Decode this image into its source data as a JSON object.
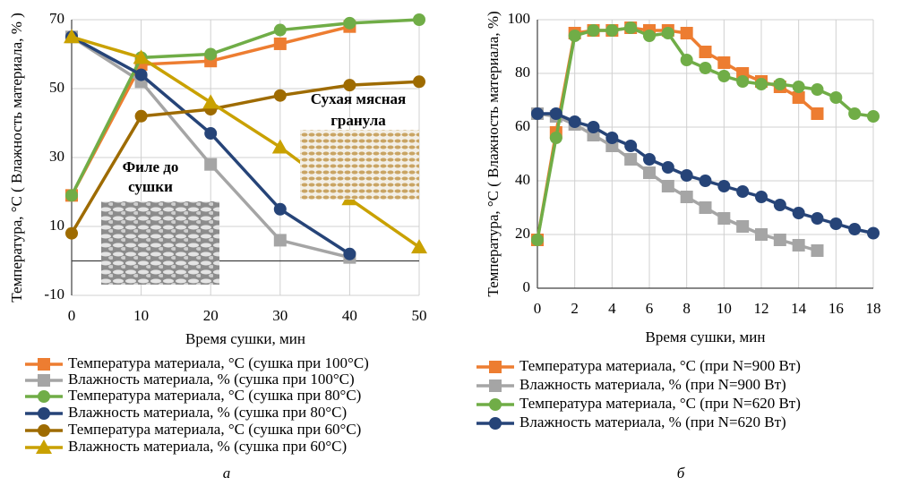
{
  "chart_data": [
    {
      "type": "line",
      "caption": "а",
      "xlabel": "Время сушки, мин",
      "ylabel": "Температура, °C ( Влажность материала, % )",
      "x": [
        0,
        10,
        20,
        30,
        40,
        50
      ],
      "xlim": [
        0,
        50
      ],
      "xticks": [
        0,
        10,
        20,
        30,
        40,
        50
      ],
      "ylim": [
        -10,
        70
      ],
      "yticks": [
        -10,
        10,
        30,
        50,
        70
      ],
      "grid": true,
      "annotations": [
        [
          "Сухая мясная",
          "гранула"
        ],
        [
          "Филе до",
          "сушки"
        ]
      ],
      "series": [
        {
          "name": "Температура материала, °C (сушка при 100°C)",
          "color": "#ed7d31",
          "marker": "square",
          "values": [
            19,
            57,
            58,
            63,
            68,
            null
          ]
        },
        {
          "name": "Влажность материала, % (сушка при 100°C)",
          "color": "#a5a5a5",
          "marker": "square",
          "values": [
            65,
            52,
            28,
            6,
            1,
            null
          ]
        },
        {
          "name": "Температура материала, °C (сушка при 80°C)",
          "color": "#70ad47",
          "marker": "circle",
          "values": [
            19,
            59,
            60,
            67,
            69,
            70
          ]
        },
        {
          "name": "Влажность материала, % (сушка при 80°C)",
          "color": "#264478",
          "marker": "circle",
          "values": [
            65,
            54,
            37,
            15,
            2,
            null
          ]
        },
        {
          "name": "Температура материала, °C (сушка при 60°C)",
          "color": "#9e6b00",
          "marker": "circle",
          "values": [
            8,
            42,
            44,
            48,
            51,
            52
          ]
        },
        {
          "name": "Влажность материала, % (сушка при 60°C)",
          "color": "#c9a100",
          "marker": "triangle",
          "values": [
            65,
            59,
            46,
            33,
            18,
            4
          ]
        }
      ]
    },
    {
      "type": "line",
      "caption": "б",
      "xlabel": "Время сушки, мин",
      "ylabel": "Температура, °C ( Влажность материала, %)",
      "x": [
        0,
        1,
        2,
        3,
        4,
        5,
        6,
        7,
        8,
        9,
        10,
        11,
        12,
        13,
        14,
        15,
        16,
        17,
        18
      ],
      "xlim": [
        0,
        18
      ],
      "xticks": [
        0,
        2,
        4,
        6,
        8,
        10,
        12,
        14,
        16,
        18
      ],
      "ylim": [
        0,
        100
      ],
      "yticks": [
        0,
        20,
        40,
        60,
        80,
        100
      ],
      "grid": true,
      "series": [
        {
          "name": "Температура материала, °C (при N=900 Вт)",
          "color": "#ed7d31",
          "marker": "square",
          "values": [
            18,
            58,
            95,
            96,
            96,
            97,
            96,
            96,
            95,
            88,
            84,
            80,
            77,
            75,
            71,
            65,
            null,
            null,
            null
          ]
        },
        {
          "name": "Влажность материала, % (при N=900 Вт)",
          "color": "#a5a5a5",
          "marker": "square",
          "values": [
            65,
            64,
            61,
            57,
            53,
            48,
            43,
            38,
            34,
            30,
            26,
            23,
            20,
            18,
            16,
            14,
            null,
            null,
            null
          ]
        },
        {
          "name": "Температура материала, °C (при N=620 Вт)",
          "color": "#70ad47",
          "marker": "circle",
          "values": [
            18,
            56,
            94,
            96,
            96,
            97,
            94,
            95,
            85,
            82,
            79,
            77,
            76,
            76,
            75,
            74,
            71,
            65,
            64
          ]
        },
        {
          "name": "Влажность материала, % (при N=620 Вт)",
          "color": "#264478",
          "marker": "circle",
          "values": [
            65,
            65,
            62,
            60,
            56,
            53,
            48,
            45,
            42,
            40,
            38,
            36,
            34,
            31,
            28,
            26,
            24,
            22,
            20.5
          ]
        }
      ]
    }
  ]
}
